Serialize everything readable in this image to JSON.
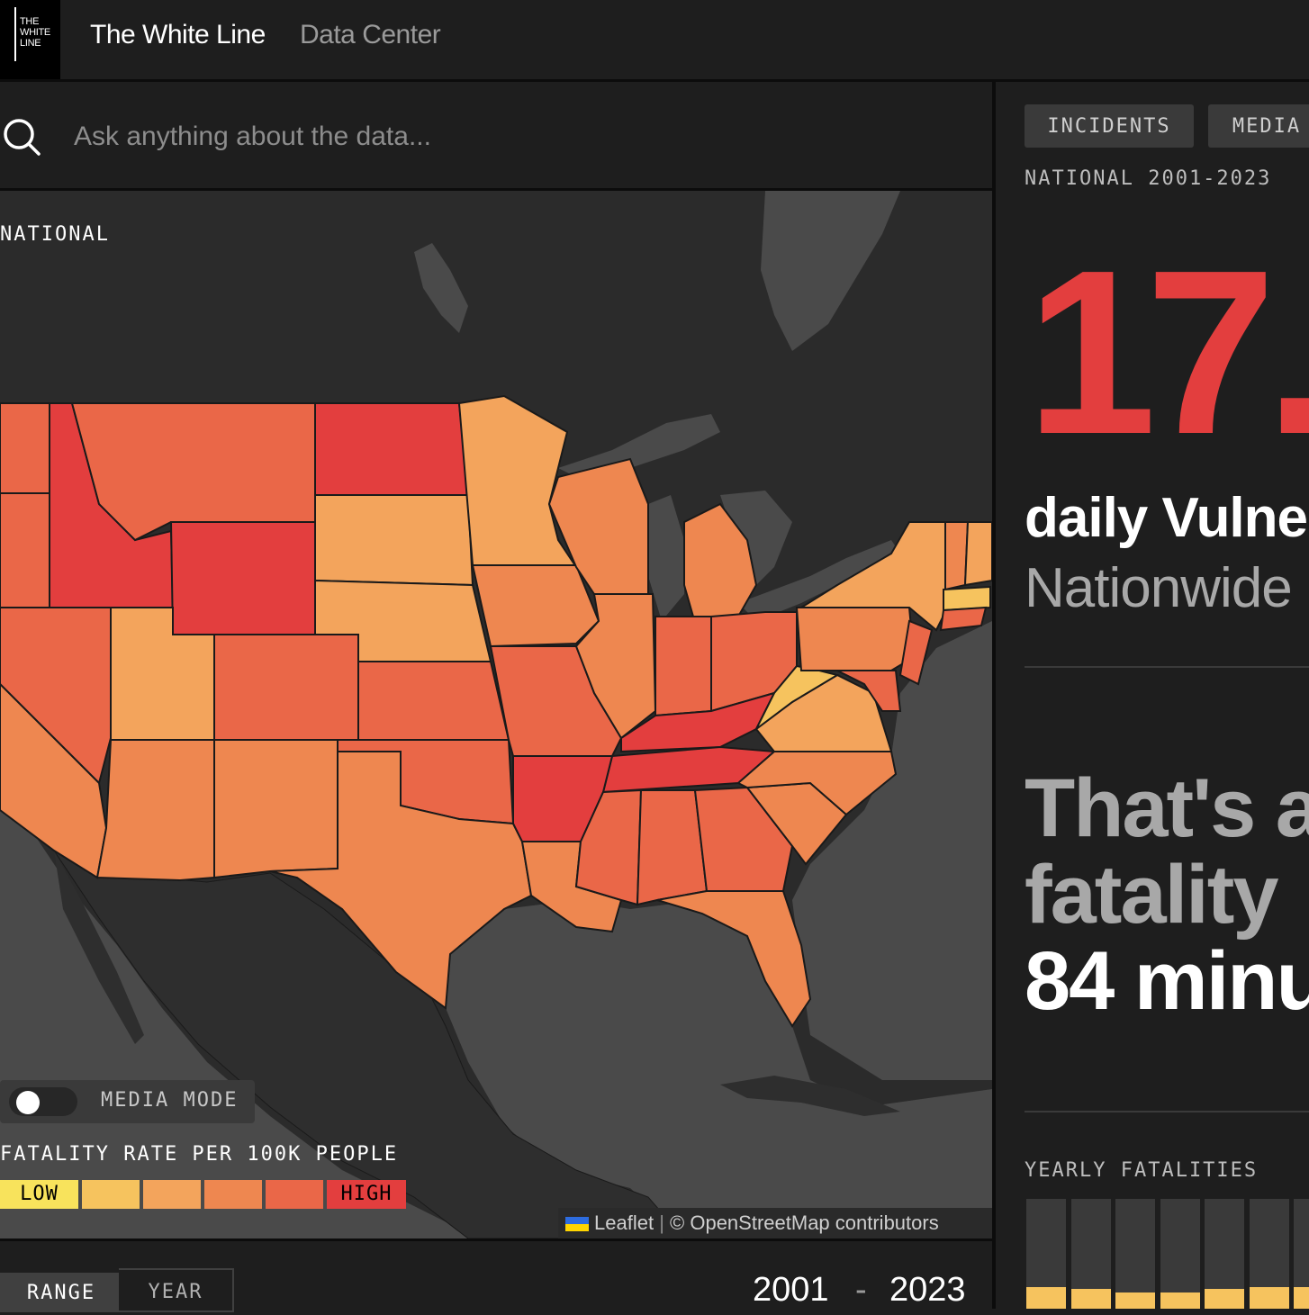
{
  "header": {
    "logo_text": "THE WHITE LINE",
    "brand": "The White Line",
    "section": "Data Center"
  },
  "search": {
    "placeholder": "Ask anything about the data..."
  },
  "map": {
    "region_label": "NATIONAL",
    "media_mode_label": "MEDIA MODE",
    "media_mode_on": false,
    "legend": {
      "title": "FATALITY RATE PER 100K PEOPLE",
      "low_label": "LOW",
      "high_label": "HIGH",
      "colors": [
        "#f8e35c",
        "#f6c35e",
        "#f3a45c",
        "#ee8750",
        "#ea6748",
        "#e33e3e"
      ]
    },
    "attribution": {
      "leaflet": "Leaflet",
      "separator": "|",
      "osm": "© OpenStreetMap contributors"
    },
    "state_colors": {
      "bg": "#202020",
      "land": "#303030",
      "water": "#4a4a4a"
    }
  },
  "controls": {
    "tab_range": "RANGE",
    "tab_year": "YEAR",
    "active_tab": "RANGE",
    "year_start": "2001",
    "year_dash": "-",
    "year_end": "2023"
  },
  "panel": {
    "tabs": [
      "INCIDENTS",
      "MEDIA"
    ],
    "scope": "NATIONAL 2001-2023",
    "big_stat": "17.",
    "stat_line1": "daily Vulne",
    "stat_line2": "Nationwide",
    "comparison_line1": "That's a",
    "comparison_line2": "fatality",
    "comparison_line3": "84 minu",
    "yearly_title": "YEARLY FATALITIES",
    "yearly_bar_fill_fractions": [
      0.2,
      0.18,
      0.15,
      0.15,
      0.18,
      0.2,
      0.2
    ]
  }
}
